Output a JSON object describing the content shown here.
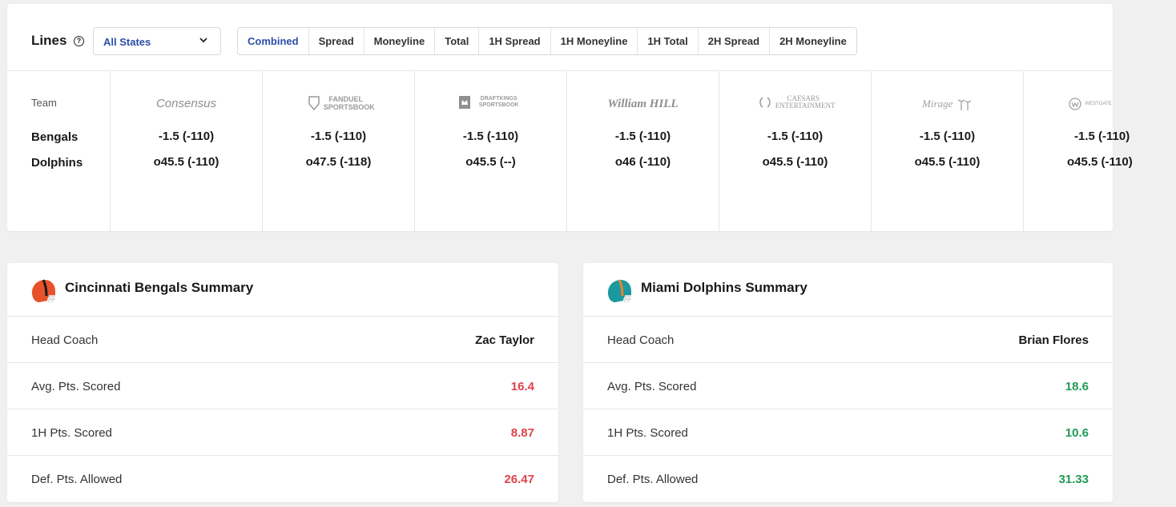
{
  "lines": {
    "title": "Lines",
    "state_select": "All States",
    "tabs": [
      {
        "label": "Combined",
        "active": true
      },
      {
        "label": "Spread"
      },
      {
        "label": "Moneyline"
      },
      {
        "label": "Total"
      },
      {
        "label": "1H Spread"
      },
      {
        "label": "1H Moneyline"
      },
      {
        "label": "1H Total"
      },
      {
        "label": "2H Spread"
      },
      {
        "label": "2H Moneyline"
      }
    ],
    "team_header": "Team",
    "teams": [
      "Bengals",
      "Dolphins"
    ],
    "books": [
      {
        "name": "Consensus",
        "line1": "-1.5 (-110)",
        "line2": "o45.5 (-110)"
      },
      {
        "name": "FANDUEL SPORTSBOOK",
        "line1": "-1.5 (-110)",
        "line2": "o47.5 (-118)"
      },
      {
        "name": "DRAFTKINGS SPORTSBOOK",
        "line1": "-1.5 (-110)",
        "line2": "o45.5 (--)"
      },
      {
        "name": "William HILL",
        "line1": "-1.5 (-110)",
        "line2": "o46 (-110)"
      },
      {
        "name": "CAESARS ENTERTAINMENT",
        "line1": "-1.5 (-110)",
        "line2": "o45.5 (-110)"
      },
      {
        "name": "Mirage",
        "line1": "-1.5 (-110)",
        "line2": "o45.5 (-110)"
      },
      {
        "name": "WESTGATE",
        "line1": "-1.5 (-110)",
        "line2": "o45.5 (-110)"
      }
    ]
  },
  "summaries": [
    {
      "title": "Cincinnati Bengals Summary",
      "helmet_color": "#e8522a",
      "helmet_stripe": "#1a1a1a",
      "value_color": "#e0424a",
      "rows": [
        {
          "label": "Head Coach",
          "value": "Zac Taylor"
        },
        {
          "label": "Avg. Pts. Scored",
          "value": "16.4"
        },
        {
          "label": "1H Pts. Scored",
          "value": "8.87"
        },
        {
          "label": "Def. Pts. Allowed",
          "value": "26.47"
        }
      ]
    },
    {
      "title": "Miami Dolphins Summary",
      "helmet_color": "#1a9aa0",
      "helmet_stripe": "#f0812a",
      "value_color": "#1f9a55",
      "rows": [
        {
          "label": "Head Coach",
          "value": "Brian Flores"
        },
        {
          "label": "Avg. Pts. Scored",
          "value": "18.6"
        },
        {
          "label": "1H Pts. Scored",
          "value": "10.6"
        },
        {
          "label": "Def. Pts. Allowed",
          "value": "31.33"
        }
      ]
    }
  ]
}
